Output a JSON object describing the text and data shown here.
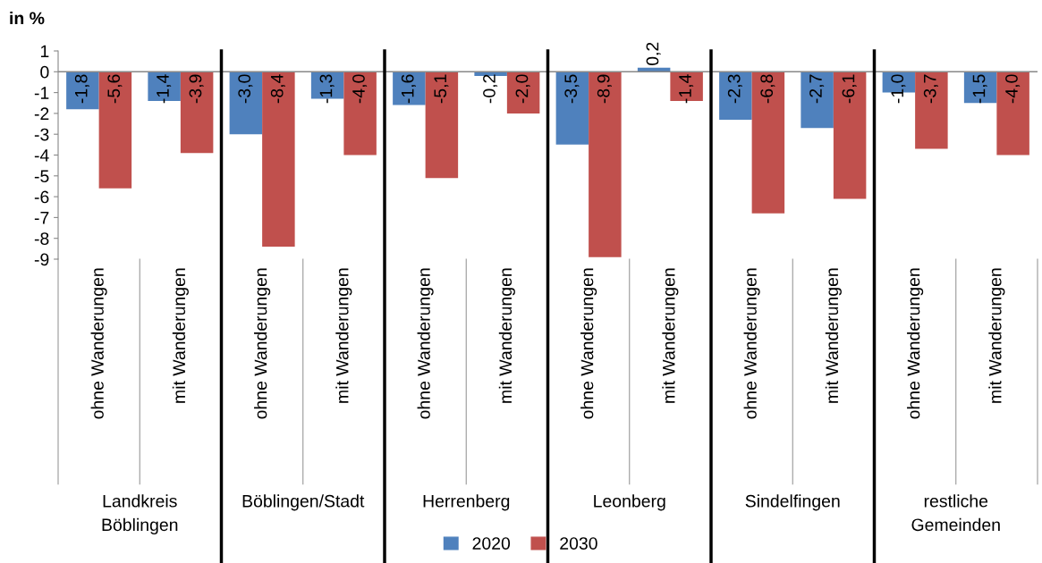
{
  "chart_data": {
    "type": "bar",
    "ylabel": "in %",
    "categories": [
      "ohne Wanderungen",
      "mit Wanderungen",
      "ohne Wanderungen",
      "mit Wanderungen",
      "ohne Wanderungen",
      "mit Wanderungen",
      "ohne Wanderungen",
      "mit Wanderungen",
      "ohne Wanderungen",
      "mit Wanderungen",
      "ohne Wanderungen",
      "mit Wanderungen"
    ],
    "annotations": [
      "Landkreis\nBöblingen",
      "Böblingen/Stadt",
      "Herrenberg",
      "Leonberg",
      "Sindelfingen",
      "restliche\nGemeinden"
    ],
    "series": [
      {
        "name": "2020",
        "color": "#4f81bd",
        "values": [
          -1.8,
          -1.4,
          -3.0,
          -1.3,
          -1.6,
          -0.2,
          -3.5,
          0.2,
          -2.3,
          -2.7,
          -1.0,
          -1.5
        ],
        "value_labels": [
          "-1,8",
          "-1,4",
          "-3,0",
          "-1,3",
          "-1,6",
          "-0,2",
          "-3,5",
          "0,2",
          "-2,3",
          "-2,7",
          "-1,0",
          "-1,5"
        ]
      },
      {
        "name": "2030",
        "color": "#c0504d",
        "values": [
          -5.6,
          -3.9,
          -8.4,
          -4.0,
          -5.1,
          -2.0,
          -8.9,
          -1.4,
          -6.8,
          -6.1,
          -3.7,
          -4.0
        ],
        "value_labels": [
          "-5,6",
          "-3,9",
          "-8,4",
          "-4,0",
          "-5,1",
          "-2,0",
          "-8,9",
          "-1,4",
          "-6,8",
          "-6,1",
          "-3,7",
          "-4,0"
        ]
      }
    ],
    "ylim": [
      -9,
      1
    ],
    "yticks": [
      -9,
      -8,
      -7,
      -6,
      -5,
      -4,
      -3,
      -2,
      -1,
      0,
      1
    ],
    "grid": false,
    "legend": "bottom"
  }
}
